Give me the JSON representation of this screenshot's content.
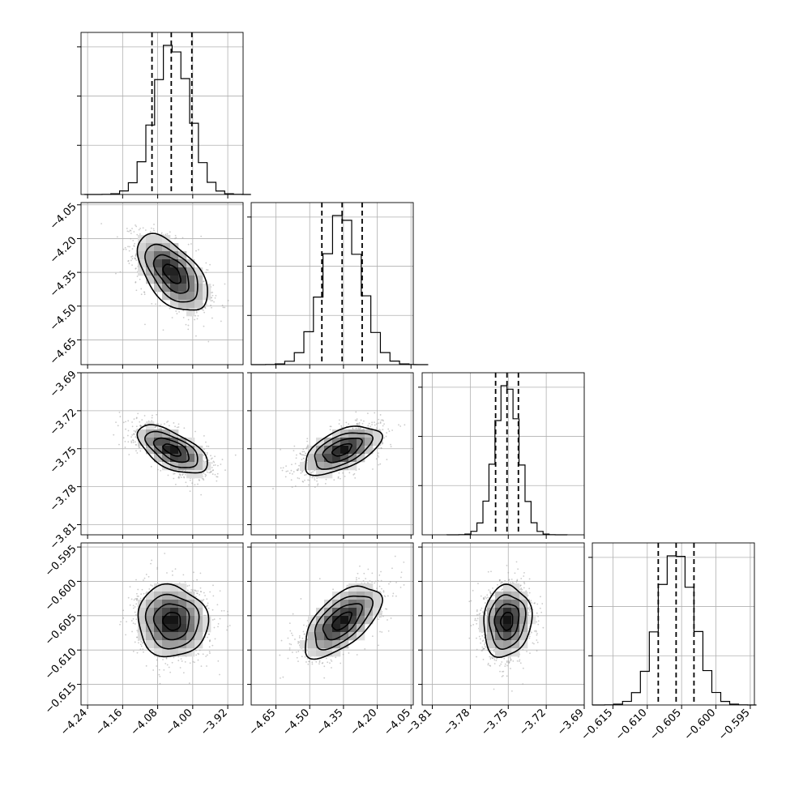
{
  "chart_data": {
    "type": "corner",
    "title": "",
    "parameters": [
      {
        "mean": -4.047,
        "std": 0.04,
        "lim": [
          -4.255,
          -3.885
        ],
        "ticks": [
          -4.24,
          -4.16,
          -4.08,
          -4.0,
          -3.92
        ],
        "tick_labels": [
          "−4.24",
          "−4.16",
          "−4.08",
          "−4.00",
          "−3.92"
        ],
        "quantiles": [
          -4.093,
          -4.049,
          -4.002
        ],
        "hist_peak": 1.0
      },
      {
        "mean": -4.356,
        "std": 0.085,
        "lim": [
          -4.76,
          -4.04
        ],
        "ticks": [
          -4.65,
          -4.5,
          -4.35,
          -4.2,
          -4.05
        ],
        "tick_labels": [
          "−4.65",
          "−4.50",
          "−4.35",
          "−4.20",
          "−4.05"
        ],
        "quantiles": [
          -4.446,
          -4.356,
          -4.267
        ],
        "hist_peak": 1.0
      },
      {
        "mean": -3.751,
        "std": 0.0095,
        "lim": [
          -3.818,
          -3.69
        ],
        "ticks": [
          -3.81,
          -3.78,
          -3.75,
          -3.72,
          -3.69
        ],
        "tick_labels": [
          "−3.81",
          "−3.78",
          "−3.75",
          "−3.72",
          "−3.69"
        ],
        "quantiles": [
          -3.76,
          -3.751,
          -3.742
        ],
        "hist_peak": 1.0
      },
      {
        "mean": -0.6058,
        "std": 0.0026,
        "lim": [
          -0.618,
          -0.5944
        ],
        "ticks": [
          -0.615,
          -0.61,
          -0.605,
          -0.6,
          -0.595
        ],
        "tick_labels": [
          "−0.615",
          "−0.610",
          "−0.605",
          "−0.600",
          "−0.595"
        ],
        "quantiles": [
          -0.6084,
          -0.6058,
          -0.6032
        ],
        "hist_peak": 1.0
      }
    ],
    "correlations": [
      {
        "i": 1,
        "j": 0,
        "rho": -0.55
      },
      {
        "i": 2,
        "j": 0,
        "rho": -0.6
      },
      {
        "i": 2,
        "j": 1,
        "rho": 0.55
      },
      {
        "i": 3,
        "j": 0,
        "rho": -0.05
      },
      {
        "i": 3,
        "j": 1,
        "rho": 0.6
      },
      {
        "i": 3,
        "j": 2,
        "rho": 0.1
      }
    ],
    "contour_levels_sigma": [
      0.5,
      1.0,
      1.5,
      2.0
    ],
    "histogram_bins": 20,
    "grid": true,
    "quantile_style": "dashed",
    "colors": {
      "line": "#000000",
      "grid": "#b0b0b0",
      "points": "#a0a0a0",
      "density_max": "#000000",
      "background": "#ffffff"
    }
  }
}
